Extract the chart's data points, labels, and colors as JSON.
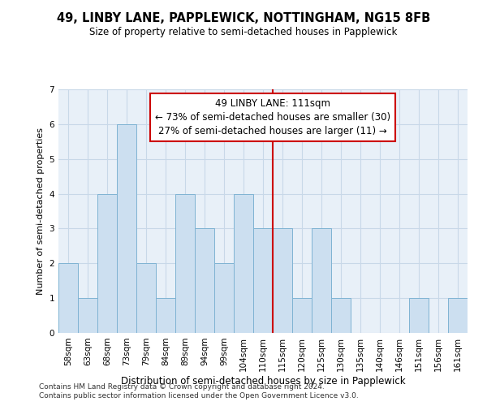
{
  "title1": "49, LINBY LANE, PAPPLEWICK, NOTTINGHAM, NG15 8FB",
  "title2": "Size of property relative to semi-detached houses in Papplewick",
  "xlabel": "Distribution of semi-detached houses by size in Papplewick",
  "ylabel": "Number of semi-detached properties",
  "categories": [
    "58sqm",
    "63sqm",
    "68sqm",
    "73sqm",
    "79sqm",
    "84sqm",
    "89sqm",
    "94sqm",
    "99sqm",
    "104sqm",
    "110sqm",
    "115sqm",
    "120sqm",
    "125sqm",
    "130sqm",
    "135sqm",
    "140sqm",
    "146sqm",
    "151sqm",
    "156sqm",
    "161sqm"
  ],
  "values": [
    2,
    1,
    4,
    6,
    2,
    1,
    4,
    3,
    2,
    4,
    3,
    3,
    1,
    3,
    1,
    0,
    0,
    0,
    1,
    0,
    1
  ],
  "bar_color": "#ccdff0",
  "bar_edge_color": "#7fb3d3",
  "ref_line_x": 10.5,
  "ref_line_color": "#cc0000",
  "annotation_line1": "49 LINBY LANE: 111sqm",
  "annotation_line2": "← 73% of semi-detached houses are smaller (30)",
  "annotation_line3": "27% of semi-detached houses are larger (11) →",
  "annotation_box_color": "#cc0000",
  "annotation_text_color": "#000000",
  "ylim": [
    0,
    7
  ],
  "yticks": [
    0,
    1,
    2,
    3,
    4,
    5,
    6,
    7
  ],
  "footer1": "Contains HM Land Registry data © Crown copyright and database right 2024.",
  "footer2": "Contains public sector information licensed under the Open Government Licence v3.0.",
  "bg_color": "#e8f0f8",
  "grid_color": "#c8d8e8",
  "title1_fontsize": 10.5,
  "title2_fontsize": 8.5,
  "xlabel_fontsize": 8.5,
  "ylabel_fontsize": 8,
  "tick_fontsize": 7.5,
  "annotation_fontsize": 8.5,
  "footer_fontsize": 6.5
}
